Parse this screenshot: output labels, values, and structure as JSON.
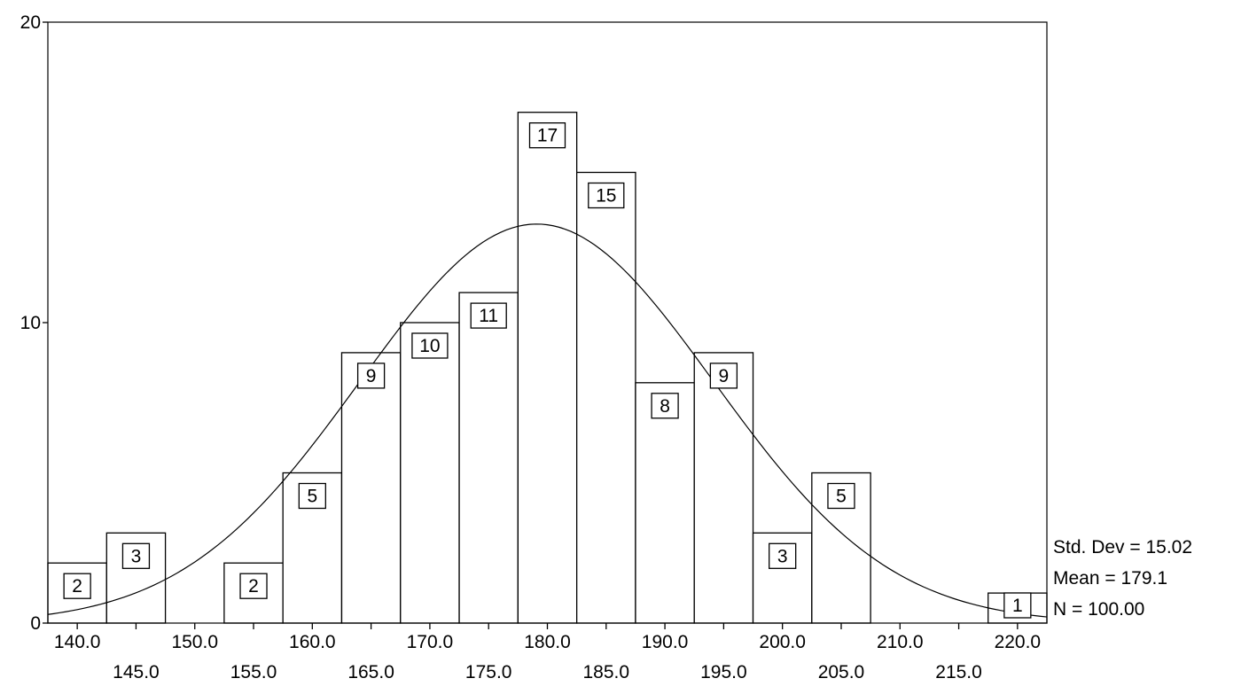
{
  "chart_data": {
    "type": "bar",
    "subtype": "histogram",
    "bin_width": 5,
    "bins": [
      {
        "center": 140,
        "count": 2
      },
      {
        "center": 145,
        "count": 3
      },
      {
        "center": 150,
        "count": 0
      },
      {
        "center": 155,
        "count": 2
      },
      {
        "center": 160,
        "count": 5
      },
      {
        "center": 165,
        "count": 9
      },
      {
        "center": 170,
        "count": 10
      },
      {
        "center": 175,
        "count": 11
      },
      {
        "center": 180,
        "count": 17
      },
      {
        "center": 185,
        "count": 15
      },
      {
        "center": 190,
        "count": 8
      },
      {
        "center": 195,
        "count": 9
      },
      {
        "center": 200,
        "count": 3
      },
      {
        "center": 205,
        "count": 5
      },
      {
        "center": 210,
        "count": 0
      },
      {
        "center": 215,
        "count": 0
      },
      {
        "center": 220,
        "count": 1
      }
    ],
    "x_tick_labels_upper": [
      "140.0",
      "150.0",
      "160.0",
      "170.0",
      "180.0",
      "190.0",
      "200.0",
      "210.0",
      "220.0"
    ],
    "x_tick_labels_lower": [
      "145.0",
      "155.0",
      "165.0",
      "175.0",
      "185.0",
      "195.0",
      "205.0",
      "215.0"
    ],
    "y_tick_labels": [
      "0",
      "10",
      "20"
    ],
    "ylim": [
      0,
      20
    ],
    "xlim": [
      137.5,
      222.5
    ],
    "normal_curve": {
      "mean": 179.1,
      "std_dev": 15.02,
      "n": 100
    },
    "stats": {
      "std_dev": "Std. Dev = 15.02",
      "mean": "Mean = 179.1",
      "n": "N = 100.00"
    },
    "grid": false
  }
}
